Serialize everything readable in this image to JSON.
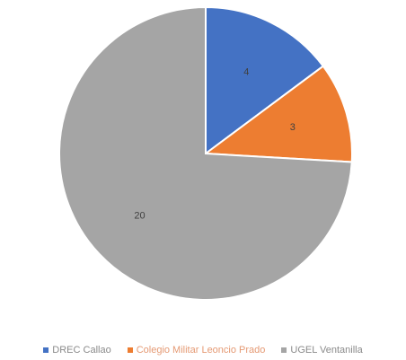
{
  "chart_data": {
    "type": "pie",
    "title": "",
    "categories": [
      "DREC Callao",
      "Colegio Militar Leoncio Prado",
      "UGEL Ventanilla"
    ],
    "values": [
      4,
      3,
      20
    ],
    "labels": [
      "4",
      "3",
      "20"
    ],
    "colors": [
      "#4472C4",
      "#ED7D31",
      "#A5A5A5"
    ],
    "legend_position": "bottom",
    "start_angle": "top, clockwise"
  }
}
